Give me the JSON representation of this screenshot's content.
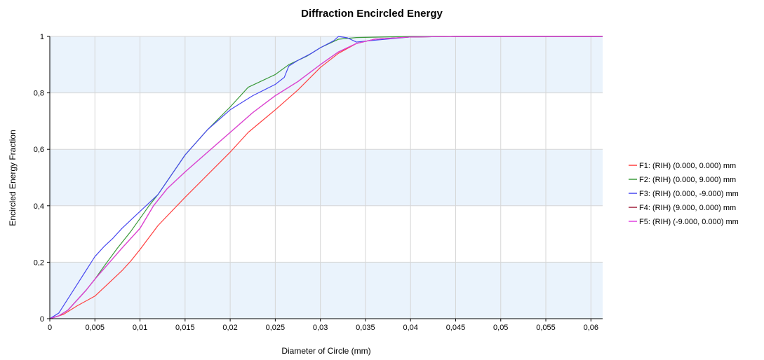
{
  "chart_data": {
    "type": "line",
    "title": "Diffraction Encircled Energy",
    "xlabel": "Diameter of Circle (mm)",
    "ylabel": "Encircled Energy Fraction",
    "xlim": [
      0,
      0.0613
    ],
    "ylim": [
      0,
      1
    ],
    "grid": true,
    "legend_position": "right",
    "x_ticks": [
      "0",
      "0,005",
      "0,01",
      "0,015",
      "0,02",
      "0,025",
      "0,03",
      "0,035",
      "0,04",
      "0,045",
      "0,05",
      "0,055",
      "0,06"
    ],
    "y_ticks": [
      "0",
      "0,2",
      "0,4",
      "0,6",
      "0,8",
      "1"
    ],
    "series": [
      {
        "name": "F1: (RIH) (0.000, 0.000) mm",
        "color": "#ff4040",
        "points": [
          [
            0,
            0
          ],
          [
            0.0015,
            0.015
          ],
          [
            0.003,
            0.045
          ],
          [
            0.005,
            0.08
          ],
          [
            0.0065,
            0.125
          ],
          [
            0.008,
            0.17
          ],
          [
            0.009,
            0.205
          ],
          [
            0.01,
            0.245
          ],
          [
            0.012,
            0.33
          ],
          [
            0.015,
            0.43
          ],
          [
            0.0175,
            0.51
          ],
          [
            0.02,
            0.59
          ],
          [
            0.022,
            0.66
          ],
          [
            0.025,
            0.74
          ],
          [
            0.0275,
            0.81
          ],
          [
            0.03,
            0.89
          ],
          [
            0.032,
            0.94
          ],
          [
            0.034,
            0.975
          ],
          [
            0.036,
            0.99
          ],
          [
            0.04,
            0.998
          ],
          [
            0.045,
            1
          ],
          [
            0.0613,
            1
          ]
        ]
      },
      {
        "name": "F2: (RIH) (0.000, 9.000) mm",
        "color": "#3c9a3c",
        "points": [
          [
            0,
            0
          ],
          [
            0.001,
            0.01
          ],
          [
            0.002,
            0.03
          ],
          [
            0.003,
            0.065
          ],
          [
            0.004,
            0.1
          ],
          [
            0.005,
            0.14
          ],
          [
            0.006,
            0.185
          ],
          [
            0.0075,
            0.25
          ],
          [
            0.009,
            0.31
          ],
          [
            0.01,
            0.355
          ],
          [
            0.011,
            0.4
          ],
          [
            0.012,
            0.44
          ],
          [
            0.0135,
            0.51
          ],
          [
            0.015,
            0.58
          ],
          [
            0.0175,
            0.67
          ],
          [
            0.02,
            0.75
          ],
          [
            0.022,
            0.82
          ],
          [
            0.025,
            0.865
          ],
          [
            0.0265,
            0.9
          ],
          [
            0.0285,
            0.93
          ],
          [
            0.03,
            0.96
          ],
          [
            0.032,
            0.99
          ],
          [
            0.034,
            0.996
          ],
          [
            0.04,
            1
          ],
          [
            0.0613,
            1
          ]
        ]
      },
      {
        "name": "F3: (RIH) (0.000, -9.000) mm",
        "color": "#4848f0",
        "points": [
          [
            0,
            0
          ],
          [
            0.001,
            0.02
          ],
          [
            0.002,
            0.07
          ],
          [
            0.003,
            0.12
          ],
          [
            0.004,
            0.17
          ],
          [
            0.005,
            0.22
          ],
          [
            0.006,
            0.255
          ],
          [
            0.007,
            0.285
          ],
          [
            0.008,
            0.32
          ],
          [
            0.009,
            0.35
          ],
          [
            0.01,
            0.38
          ],
          [
            0.011,
            0.41
          ],
          [
            0.012,
            0.44
          ],
          [
            0.0135,
            0.51
          ],
          [
            0.015,
            0.58
          ],
          [
            0.0175,
            0.67
          ],
          [
            0.02,
            0.74
          ],
          [
            0.0225,
            0.79
          ],
          [
            0.025,
            0.83
          ],
          [
            0.026,
            0.855
          ],
          [
            0.0265,
            0.895
          ],
          [
            0.0275,
            0.915
          ],
          [
            0.029,
            0.94
          ],
          [
            0.03,
            0.96
          ],
          [
            0.0315,
            0.985
          ],
          [
            0.032,
            1
          ],
          [
            0.033,
            0.995
          ],
          [
            0.034,
            0.98
          ],
          [
            0.0355,
            0.985
          ],
          [
            0.04,
            0.998
          ],
          [
            0.045,
            1
          ],
          [
            0.0613,
            1
          ]
        ]
      },
      {
        "name": "F4: (RIH) (9.000, 0.000) mm",
        "color": "#a0203c",
        "points": [
          [
            0,
            0
          ],
          [
            0.001,
            0.01
          ],
          [
            0.002,
            0.03
          ],
          [
            0.003,
            0.065
          ],
          [
            0.004,
            0.1
          ],
          [
            0.005,
            0.14
          ],
          [
            0.0065,
            0.195
          ],
          [
            0.008,
            0.25
          ],
          [
            0.01,
            0.32
          ],
          [
            0.0115,
            0.4
          ],
          [
            0.013,
            0.46
          ],
          [
            0.015,
            0.52
          ],
          [
            0.0175,
            0.59
          ],
          [
            0.02,
            0.66
          ],
          [
            0.0225,
            0.73
          ],
          [
            0.025,
            0.79
          ],
          [
            0.0275,
            0.84
          ],
          [
            0.03,
            0.9
          ],
          [
            0.032,
            0.945
          ],
          [
            0.034,
            0.975
          ],
          [
            0.036,
            0.99
          ],
          [
            0.04,
            0.998
          ],
          [
            0.045,
            1
          ],
          [
            0.0613,
            1
          ]
        ]
      },
      {
        "name": "F5: (RIH) (-9.000, 0.000) mm",
        "color": "#e040e0",
        "points": [
          [
            0,
            0
          ],
          [
            0.001,
            0.01
          ],
          [
            0.002,
            0.03
          ],
          [
            0.003,
            0.065
          ],
          [
            0.004,
            0.1
          ],
          [
            0.005,
            0.14
          ],
          [
            0.0065,
            0.195
          ],
          [
            0.008,
            0.25
          ],
          [
            0.01,
            0.32
          ],
          [
            0.0115,
            0.4
          ],
          [
            0.013,
            0.46
          ],
          [
            0.015,
            0.52
          ],
          [
            0.0175,
            0.59
          ],
          [
            0.02,
            0.66
          ],
          [
            0.0225,
            0.73
          ],
          [
            0.025,
            0.79
          ],
          [
            0.0275,
            0.84
          ],
          [
            0.03,
            0.9
          ],
          [
            0.032,
            0.945
          ],
          [
            0.034,
            0.975
          ],
          [
            0.036,
            0.99
          ],
          [
            0.04,
            0.998
          ],
          [
            0.045,
            1
          ],
          [
            0.0613,
            1
          ]
        ]
      }
    ],
    "colors": {
      "band": "#eaf3fc",
      "grid": "#d6d6d6",
      "axis": "#000000"
    }
  }
}
